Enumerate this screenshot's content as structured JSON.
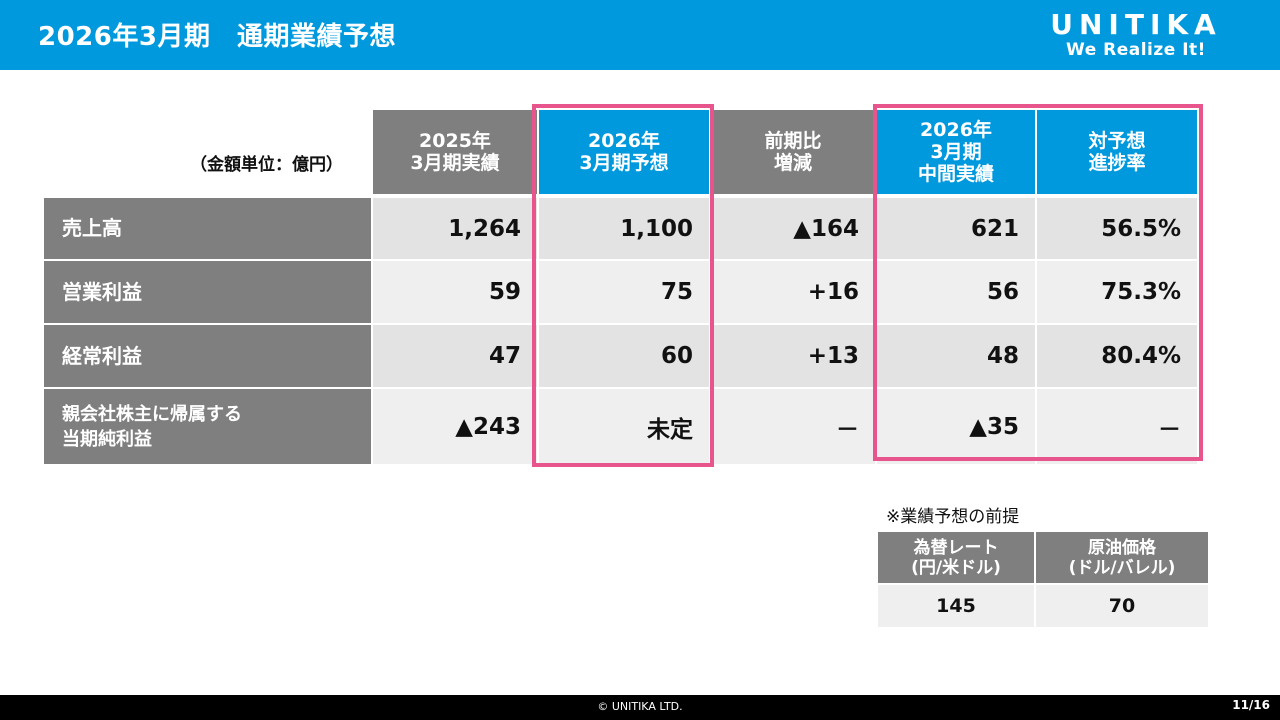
{
  "header": {
    "title": "2026年3月期　通期業績予想",
    "logo_main": "UNITIKA",
    "logo_tagline": "We Realize It!"
  },
  "table": {
    "unit_label": "（金額単位：億円）",
    "columns": [
      [
        "2025年",
        "3月期実績"
      ],
      [
        "2026年",
        "3月期予想"
      ],
      [
        "前期比",
        "増減"
      ],
      [
        "2026年",
        "3月期",
        "中間実績"
      ],
      [
        "対予想",
        "進捗率"
      ]
    ],
    "rows": [
      {
        "label": [
          "売上高"
        ],
        "values": [
          "1,264",
          "1,100",
          "▲164",
          "621",
          "56.5%"
        ]
      },
      {
        "label": [
          "営業利益"
        ],
        "values": [
          "59",
          "75",
          "+16",
          "56",
          "75.3%"
        ]
      },
      {
        "label": [
          "経常利益"
        ],
        "values": [
          "47",
          "60",
          "+13",
          "48",
          "80.4%"
        ]
      },
      {
        "label": [
          "親会社株主に帰属する",
          "当期純利益"
        ],
        "values": [
          "▲243",
          "未定",
          "－",
          "▲35",
          "－"
        ]
      }
    ]
  },
  "assumptions": {
    "note": "※業績予想の前提",
    "headers": [
      [
        "為替レート",
        "(円/米ドル)"
      ],
      [
        "原油価格",
        "(ドル/バレル)"
      ]
    ],
    "values": [
      "145",
      "70"
    ]
  },
  "footer": {
    "copyright": "© UNITIKA LTD.",
    "page": "11/16"
  },
  "colors": {
    "header_blue": "#0099dd",
    "header_gray": "#7f7f7f",
    "highlight_pink": "#e8548c",
    "cell_gray": "#e3e3e3"
  }
}
